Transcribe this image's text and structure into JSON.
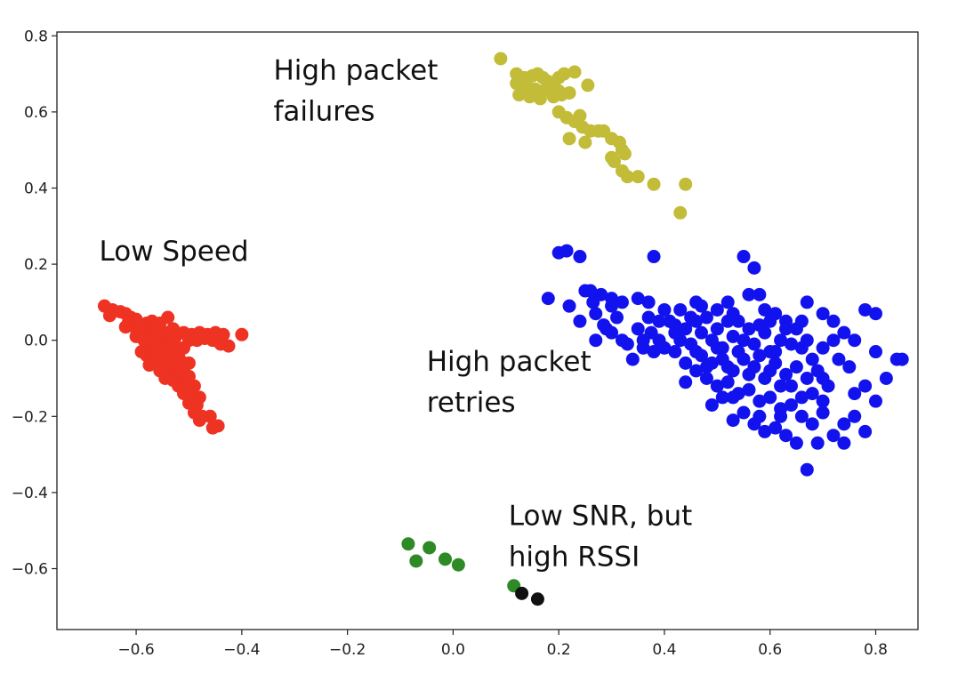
{
  "chart_data": {
    "type": "scatter",
    "title": "",
    "xlabel": "",
    "ylabel": "",
    "xlim": [
      -0.75,
      0.88
    ],
    "ylim": [
      -0.76,
      0.81
    ],
    "xticks": [
      -0.6,
      -0.4,
      -0.2,
      0.0,
      0.2,
      0.4,
      0.6,
      0.8
    ],
    "xtick_labels": [
      "−0.6",
      "−0.4",
      "−0.2",
      "0.0",
      "0.2",
      "0.4",
      "0.6",
      "0.8"
    ],
    "yticks": [
      0.8,
      0.6,
      0.4,
      0.2,
      0.0,
      -0.2,
      -0.4,
      -0.6
    ],
    "ytick_labels": [
      "0.8",
      "0.6",
      "0.4",
      "0.2",
      "0.0",
      "−0.2",
      "−0.4",
      "−0.6"
    ],
    "grid": false,
    "legend": "none",
    "annotations": [
      {
        "lines": [
          "High packet",
          "failures"
        ],
        "x": -0.34,
        "y": 0.685,
        "color": "#111111"
      },
      {
        "lines": [
          "Low Speed"
        ],
        "x": -0.67,
        "y": 0.21,
        "color": "#111111"
      },
      {
        "lines": [
          "High packet",
          "retries"
        ],
        "x": -0.05,
        "y": -0.08,
        "color": "#111111"
      },
      {
        "lines": [
          "Low SNR, but",
          "high RSSI"
        ],
        "x": 0.105,
        "y": -0.485,
        "color": "#111111"
      }
    ],
    "series": [
      {
        "color": "#ee3322",
        "points": [
          [
            -0.66,
            0.09
          ],
          [
            -0.645,
            0.08
          ],
          [
            -0.63,
            0.075
          ],
          [
            -0.62,
            0.07
          ],
          [
            -0.65,
            0.065
          ],
          [
            -0.61,
            0.06
          ],
          [
            -0.6,
            0.055
          ],
          [
            -0.615,
            0.045
          ],
          [
            -0.62,
            0.035
          ],
          [
            -0.6,
            0.03
          ],
          [
            -0.59,
            0.04
          ],
          [
            -0.58,
            0.045
          ],
          [
            -0.57,
            0.05
          ],
          [
            -0.555,
            0.045
          ],
          [
            -0.54,
            0.06
          ],
          [
            -0.57,
            0.035
          ],
          [
            -0.6,
            0.01
          ],
          [
            -0.59,
            0.02
          ],
          [
            -0.575,
            0.015
          ],
          [
            -0.56,
            0.025
          ],
          [
            -0.545,
            0.02
          ],
          [
            -0.53,
            0.03
          ],
          [
            -0.585,
            0.0
          ],
          [
            -0.57,
            -0.005
          ],
          [
            -0.555,
            0.005
          ],
          [
            -0.54,
            0.0
          ],
          [
            -0.525,
            0.01
          ],
          [
            -0.51,
            0.02
          ],
          [
            -0.495,
            0.015
          ],
          [
            -0.48,
            0.02
          ],
          [
            -0.465,
            0.015
          ],
          [
            -0.45,
            0.02
          ],
          [
            -0.435,
            0.015
          ],
          [
            -0.4,
            0.015
          ],
          [
            -0.5,
            0.0
          ],
          [
            -0.485,
            0.0
          ],
          [
            -0.47,
            0.005
          ],
          [
            -0.455,
            0.0
          ],
          [
            -0.44,
            -0.01
          ],
          [
            -0.425,
            -0.015
          ],
          [
            -0.57,
            -0.02
          ],
          [
            -0.555,
            -0.025
          ],
          [
            -0.54,
            -0.02
          ],
          [
            -0.525,
            -0.015
          ],
          [
            -0.51,
            -0.02
          ],
          [
            -0.58,
            -0.04
          ],
          [
            -0.565,
            -0.045
          ],
          [
            -0.55,
            -0.04
          ],
          [
            -0.535,
            -0.035
          ],
          [
            -0.52,
            -0.04
          ],
          [
            -0.56,
            -0.06
          ],
          [
            -0.545,
            -0.065
          ],
          [
            -0.53,
            -0.06
          ],
          [
            -0.515,
            -0.055
          ],
          [
            -0.5,
            -0.06
          ],
          [
            -0.555,
            -0.08
          ],
          [
            -0.54,
            -0.085
          ],
          [
            -0.525,
            -0.08
          ],
          [
            -0.51,
            -0.075
          ],
          [
            -0.545,
            -0.1
          ],
          [
            -0.53,
            -0.105
          ],
          [
            -0.515,
            -0.1
          ],
          [
            -0.5,
            -0.095
          ],
          [
            -0.52,
            -0.12
          ],
          [
            -0.505,
            -0.125
          ],
          [
            -0.49,
            -0.12
          ],
          [
            -0.51,
            -0.14
          ],
          [
            -0.495,
            -0.145
          ],
          [
            -0.48,
            -0.15
          ],
          [
            -0.5,
            -0.165
          ],
          [
            -0.485,
            -0.17
          ],
          [
            -0.49,
            -0.19
          ],
          [
            -0.475,
            -0.2
          ],
          [
            -0.46,
            -0.2
          ],
          [
            -0.48,
            -0.21
          ],
          [
            -0.455,
            -0.23
          ],
          [
            -0.445,
            -0.225
          ],
          [
            -0.575,
            -0.065
          ],
          [
            -0.59,
            -0.03
          ],
          [
            -0.53,
            -0.005
          ]
        ]
      },
      {
        "color": "#c2bc38",
        "points": [
          [
            0.09,
            0.74
          ],
          [
            0.12,
            0.7
          ],
          [
            0.135,
            0.69
          ],
          [
            0.15,
            0.695
          ],
          [
            0.16,
            0.7
          ],
          [
            0.17,
            0.69
          ],
          [
            0.18,
            0.68
          ],
          [
            0.19,
            0.675
          ],
          [
            0.2,
            0.69
          ],
          [
            0.21,
            0.7
          ],
          [
            0.12,
            0.675
          ],
          [
            0.14,
            0.665
          ],
          [
            0.155,
            0.66
          ],
          [
            0.17,
            0.655
          ],
          [
            0.185,
            0.66
          ],
          [
            0.2,
            0.655
          ],
          [
            0.125,
            0.645
          ],
          [
            0.145,
            0.64
          ],
          [
            0.165,
            0.635
          ],
          [
            0.19,
            0.64
          ],
          [
            0.205,
            0.645
          ],
          [
            0.22,
            0.65
          ],
          [
            0.2,
            0.6
          ],
          [
            0.215,
            0.585
          ],
          [
            0.23,
            0.575
          ],
          [
            0.24,
            0.59
          ],
          [
            0.245,
            0.56
          ],
          [
            0.22,
            0.53
          ],
          [
            0.25,
            0.52
          ],
          [
            0.26,
            0.55
          ],
          [
            0.275,
            0.55
          ],
          [
            0.285,
            0.55
          ],
          [
            0.3,
            0.53
          ],
          [
            0.315,
            0.52
          ],
          [
            0.32,
            0.5
          ],
          [
            0.325,
            0.49
          ],
          [
            0.3,
            0.48
          ],
          [
            0.305,
            0.47
          ],
          [
            0.32,
            0.445
          ],
          [
            0.35,
            0.43
          ],
          [
            0.33,
            0.43
          ],
          [
            0.38,
            0.41
          ],
          [
            0.44,
            0.41
          ],
          [
            0.43,
            0.335
          ],
          [
            0.23,
            0.705
          ],
          [
            0.255,
            0.67
          ]
        ]
      },
      {
        "color": "#1212ee",
        "points": [
          [
            0.18,
            0.11
          ],
          [
            0.2,
            0.23
          ],
          [
            0.215,
            0.235
          ],
          [
            0.24,
            0.22
          ],
          [
            0.22,
            0.09
          ],
          [
            0.24,
            0.05
          ],
          [
            0.25,
            0.13
          ],
          [
            0.265,
            0.1
          ],
          [
            0.27,
            0.07
          ],
          [
            0.285,
            0.04
          ],
          [
            0.3,
            0.09
          ],
          [
            0.31,
            0.06
          ],
          [
            0.32,
            0.1
          ],
          [
            0.3,
            0.02
          ],
          [
            0.33,
            -0.01
          ],
          [
            0.35,
            0.03
          ],
          [
            0.36,
            0.0
          ],
          [
            0.375,
            0.02
          ],
          [
            0.38,
            0.22
          ],
          [
            0.37,
            0.06
          ],
          [
            0.39,
            0.05
          ],
          [
            0.4,
            0.08
          ],
          [
            0.41,
            0.05
          ],
          [
            0.42,
            0.02
          ],
          [
            0.43,
            0.0
          ],
          [
            0.44,
            0.03
          ],
          [
            0.45,
            -0.01
          ],
          [
            0.46,
            0.05
          ],
          [
            0.47,
            0.02
          ],
          [
            0.48,
            0.06
          ],
          [
            0.49,
            0.0
          ],
          [
            0.5,
            0.03
          ],
          [
            0.51,
            -0.02
          ],
          [
            0.52,
            0.05
          ],
          [
            0.53,
            0.01
          ],
          [
            0.54,
            0.05
          ],
          [
            0.55,
            0.0
          ],
          [
            0.56,
            0.03
          ],
          [
            0.57,
            -0.01
          ],
          [
            0.58,
            0.04
          ],
          [
            0.59,
            0.02
          ],
          [
            0.6,
            -0.03
          ],
          [
            0.61,
            0.07
          ],
          [
            0.62,
            0.0
          ],
          [
            0.63,
            0.05
          ],
          [
            0.64,
            -0.01
          ],
          [
            0.65,
            0.03
          ],
          [
            0.66,
            -0.02
          ],
          [
            0.67,
            0.0
          ],
          [
            0.68,
            -0.05
          ],
          [
            0.47,
            -0.04
          ],
          [
            0.49,
            -0.06
          ],
          [
            0.51,
            -0.05
          ],
          [
            0.53,
            -0.08
          ],
          [
            0.55,
            -0.05
          ],
          [
            0.57,
            -0.07
          ],
          [
            0.59,
            -0.1
          ],
          [
            0.61,
            -0.06
          ],
          [
            0.63,
            -0.09
          ],
          [
            0.65,
            -0.07
          ],
          [
            0.67,
            -0.1
          ],
          [
            0.69,
            -0.08
          ],
          [
            0.71,
            -0.12
          ],
          [
            0.48,
            -0.1
          ],
          [
            0.5,
            -0.12
          ],
          [
            0.52,
            -0.11
          ],
          [
            0.54,
            -0.14
          ],
          [
            0.56,
            -0.13
          ],
          [
            0.58,
            -0.16
          ],
          [
            0.6,
            -0.15
          ],
          [
            0.62,
            -0.18
          ],
          [
            0.64,
            -0.17
          ],
          [
            0.66,
            -0.2
          ],
          [
            0.68,
            -0.22
          ],
          [
            0.7,
            -0.19
          ],
          [
            0.72,
            -0.25
          ],
          [
            0.74,
            -0.27
          ],
          [
            0.76,
            -0.2
          ],
          [
            0.78,
            -0.24
          ],
          [
            0.8,
            -0.16
          ],
          [
            0.82,
            -0.1
          ],
          [
            0.84,
            -0.05
          ],
          [
            0.85,
            -0.05
          ],
          [
            0.8,
            -0.03
          ],
          [
            0.78,
            0.08
          ],
          [
            0.8,
            0.07
          ],
          [
            0.7,
            0.07
          ],
          [
            0.72,
            0.05
          ],
          [
            0.67,
            0.1
          ],
          [
            0.5,
            0.08
          ],
          [
            0.55,
            0.22
          ],
          [
            0.57,
            0.19
          ],
          [
            0.56,
            0.12
          ],
          [
            0.58,
            0.12
          ],
          [
            0.43,
            0.08
          ],
          [
            0.42,
            0.04
          ],
          [
            0.46,
            -0.08
          ],
          [
            0.44,
            -0.11
          ],
          [
            0.53,
            -0.21
          ],
          [
            0.55,
            -0.19
          ],
          [
            0.57,
            -0.22
          ],
          [
            0.59,
            -0.24
          ],
          [
            0.61,
            -0.23
          ],
          [
            0.63,
            -0.25
          ],
          [
            0.65,
            -0.27
          ],
          [
            0.67,
            -0.34
          ],
          [
            0.69,
            -0.27
          ],
          [
            0.74,
            -0.22
          ],
          [
            0.75,
            -0.07
          ],
          [
            0.73,
            -0.05
          ],
          [
            0.76,
            0.0
          ],
          [
            0.7,
            -0.02
          ],
          [
            0.62,
            -0.12
          ],
          [
            0.6,
            -0.08
          ],
          [
            0.58,
            -0.04
          ],
          [
            0.56,
            -0.09
          ],
          [
            0.54,
            -0.03
          ],
          [
            0.52,
            -0.07
          ],
          [
            0.5,
            -0.02
          ],
          [
            0.48,
            -0.07
          ],
          [
            0.46,
            -0.03
          ],
          [
            0.44,
            -0.06
          ],
          [
            0.42,
            -0.03
          ],
          [
            0.4,
            -0.02
          ],
          [
            0.39,
            0.0
          ],
          [
            0.38,
            -0.03
          ],
          [
            0.36,
            -0.02
          ],
          [
            0.34,
            -0.05
          ],
          [
            0.32,
            0.0
          ],
          [
            0.26,
            0.13
          ],
          [
            0.28,
            0.12
          ],
          [
            0.3,
            0.11
          ],
          [
            0.35,
            0.11
          ],
          [
            0.37,
            0.1
          ],
          [
            0.29,
            0.03
          ],
          [
            0.27,
            0.0
          ],
          [
            0.45,
            0.06
          ],
          [
            0.47,
            0.09
          ],
          [
            0.66,
            0.05
          ],
          [
            0.68,
            -0.14
          ],
          [
            0.7,
            -0.16
          ],
          [
            0.64,
            -0.12
          ],
          [
            0.66,
            -0.15
          ],
          [
            0.62,
            -0.2
          ],
          [
            0.58,
            -0.2
          ],
          [
            0.53,
            -0.15
          ],
          [
            0.51,
            -0.15
          ],
          [
            0.49,
            -0.17
          ],
          [
            0.63,
            0.03
          ],
          [
            0.72,
            0.0
          ],
          [
            0.74,
            0.02
          ],
          [
            0.78,
            -0.12
          ],
          [
            0.76,
            -0.14
          ],
          [
            0.7,
            -0.1
          ],
          [
            0.61,
            -0.03
          ],
          [
            0.6,
            0.05
          ],
          [
            0.59,
            0.08
          ],
          [
            0.53,
            0.07
          ],
          [
            0.52,
            0.1
          ],
          [
            0.46,
            0.1
          ]
        ]
      },
      {
        "color": "#2e8a26",
        "points": [
          [
            -0.085,
            -0.535
          ],
          [
            -0.07,
            -0.58
          ],
          [
            -0.045,
            -0.545
          ],
          [
            -0.015,
            -0.575
          ],
          [
            0.01,
            -0.59
          ],
          [
            0.115,
            -0.645
          ]
        ]
      },
      {
        "color": "#111111",
        "points": [
          [
            0.13,
            -0.665
          ],
          [
            0.16,
            -0.68
          ]
        ]
      }
    ]
  }
}
